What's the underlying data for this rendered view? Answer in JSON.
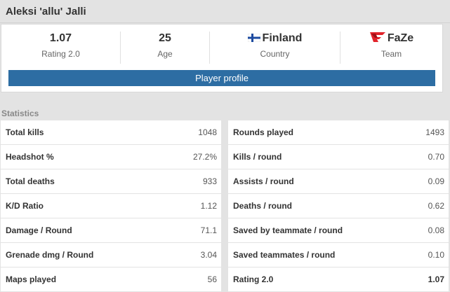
{
  "player": {
    "name": "Aleksi 'allu' Jalli"
  },
  "summary": [
    {
      "value": "1.07",
      "label": "Rating 2.0"
    },
    {
      "value": "25",
      "label": "Age"
    },
    {
      "value": "Finland",
      "label": "Country",
      "icon": "finland-flag-icon"
    },
    {
      "value": "FaZe",
      "label": "Team",
      "icon": "faze-logo-icon"
    }
  ],
  "profile_button": "Player profile",
  "section_title": "Statistics",
  "colors": {
    "accent": "#2d6da3",
    "background": "#e3e3e3",
    "faze_red": "#e2232a"
  },
  "left_stats": [
    {
      "label": "Total kills",
      "value": "1048"
    },
    {
      "label": "Headshot %",
      "value": "27.2%"
    },
    {
      "label": "Total deaths",
      "value": "933"
    },
    {
      "label": "K/D Ratio",
      "value": "1.12"
    },
    {
      "label": "Damage / Round",
      "value": "71.1"
    },
    {
      "label": "Grenade dmg / Round",
      "value": "3.04"
    },
    {
      "label": "Maps played",
      "value": "56"
    }
  ],
  "right_stats": [
    {
      "label": "Rounds played",
      "value": "1493"
    },
    {
      "label": "Kills / round",
      "value": "0.70"
    },
    {
      "label": "Assists / round",
      "value": "0.09"
    },
    {
      "label": "Deaths / round",
      "value": "0.62"
    },
    {
      "label": "Saved by teammate / round",
      "value": "0.08"
    },
    {
      "label": "Saved teammates / round",
      "value": "0.10"
    },
    {
      "label": "Rating 2.0",
      "value": "1.07"
    }
  ]
}
